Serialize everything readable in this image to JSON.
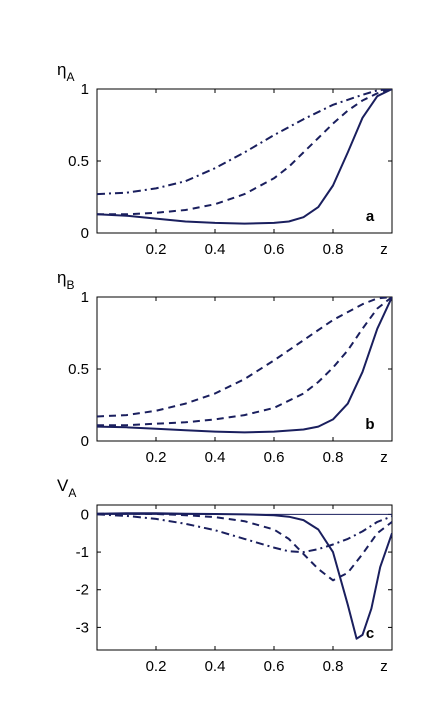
{
  "colors": {
    "line": "#1a1f5e",
    "axis": "#000000",
    "zero_line": "#1a1f5e"
  },
  "chart_data": [
    {
      "type": "line",
      "panel_label": "a",
      "ylabel": {
        "main": "η",
        "sub": "A"
      },
      "xlabel": "z",
      "xlim": [
        0,
        1
      ],
      "ylim": [
        0,
        1
      ],
      "xticks": [
        0.2,
        0.4,
        0.6,
        0.8
      ],
      "xtick_labels": [
        "0.2",
        "0.4",
        "0.6",
        "0.8"
      ],
      "yticks": [
        0,
        0.5,
        1
      ],
      "ytick_labels": [
        "0",
        "0.5",
        "1"
      ],
      "zero_line": false,
      "series": [
        {
          "style": "solid",
          "x": [
            0,
            0.1,
            0.2,
            0.3,
            0.4,
            0.5,
            0.6,
            0.65,
            0.7,
            0.75,
            0.8,
            0.85,
            0.9,
            0.95,
            1.0
          ],
          "y": [
            0.13,
            0.12,
            0.1,
            0.08,
            0.07,
            0.065,
            0.07,
            0.08,
            0.11,
            0.18,
            0.33,
            0.56,
            0.8,
            0.95,
            1.0
          ]
        },
        {
          "style": "dashed",
          "x": [
            0,
            0.1,
            0.2,
            0.3,
            0.4,
            0.5,
            0.6,
            0.65,
            0.7,
            0.75,
            0.8,
            0.85,
            0.9,
            0.95,
            1.0
          ],
          "y": [
            0.13,
            0.13,
            0.14,
            0.16,
            0.2,
            0.27,
            0.38,
            0.46,
            0.56,
            0.66,
            0.76,
            0.85,
            0.92,
            0.97,
            1.0
          ]
        },
        {
          "style": "dashdot",
          "x": [
            0,
            0.1,
            0.2,
            0.3,
            0.4,
            0.5,
            0.6,
            0.7,
            0.8,
            0.9,
            0.95,
            1.0
          ],
          "y": [
            0.27,
            0.28,
            0.31,
            0.36,
            0.45,
            0.56,
            0.68,
            0.79,
            0.89,
            0.96,
            0.99,
            1.0
          ]
        }
      ]
    },
    {
      "type": "line",
      "panel_label": "b",
      "ylabel": {
        "main": "η",
        "sub": "B"
      },
      "xlabel": "z",
      "xlim": [
        0,
        1
      ],
      "ylim": [
        0,
        1
      ],
      "xticks": [
        0.2,
        0.4,
        0.6,
        0.8
      ],
      "xtick_labels": [
        "0.2",
        "0.4",
        "0.6",
        "0.8"
      ],
      "yticks": [
        0,
        0.5,
        1
      ],
      "ytick_labels": [
        "0",
        "0.5",
        "1"
      ],
      "zero_line": false,
      "series": [
        {
          "style": "solid",
          "x": [
            0,
            0.1,
            0.2,
            0.3,
            0.4,
            0.5,
            0.6,
            0.7,
            0.75,
            0.8,
            0.85,
            0.9,
            0.95,
            1.0
          ],
          "y": [
            0.1,
            0.095,
            0.085,
            0.075,
            0.065,
            0.06,
            0.065,
            0.08,
            0.1,
            0.15,
            0.26,
            0.48,
            0.78,
            1.0
          ]
        },
        {
          "style": "dashed",
          "x": [
            0,
            0.1,
            0.2,
            0.3,
            0.4,
            0.5,
            0.6,
            0.7,
            0.75,
            0.8,
            0.85,
            0.9,
            0.95,
            1.0
          ],
          "y": [
            0.11,
            0.11,
            0.12,
            0.13,
            0.15,
            0.18,
            0.23,
            0.33,
            0.41,
            0.51,
            0.63,
            0.78,
            0.92,
            1.0
          ]
        },
        {
          "style": "dashed",
          "x": [
            0,
            0.1,
            0.2,
            0.3,
            0.4,
            0.5,
            0.6,
            0.7,
            0.8,
            0.9,
            0.95,
            1.0
          ],
          "y": [
            0.17,
            0.18,
            0.21,
            0.26,
            0.33,
            0.43,
            0.56,
            0.7,
            0.84,
            0.95,
            0.99,
            1.0
          ]
        }
      ]
    },
    {
      "type": "line",
      "panel_label": "c",
      "ylabel": {
        "main": "V",
        "sub": "A"
      },
      "xlabel": "z",
      "xlim": [
        0,
        1
      ],
      "ylim": [
        -3.6,
        0.25
      ],
      "xticks": [
        0.2,
        0.4,
        0.6,
        0.8
      ],
      "xtick_labels": [
        "0.2",
        "0.4",
        "0.6",
        "0.8"
      ],
      "yticks": [
        0,
        -1,
        -2,
        -3
      ],
      "ytick_labels": [
        "0",
        "-1",
        "-2",
        "-3"
      ],
      "zero_line": true,
      "series": [
        {
          "style": "solid",
          "x": [
            0,
            0.1,
            0.2,
            0.3,
            0.4,
            0.5,
            0.6,
            0.65,
            0.7,
            0.75,
            0.8,
            0.85,
            0.88,
            0.9,
            0.93,
            0.96,
            1.0
          ],
          "y": [
            0.02,
            0.03,
            0.03,
            0.02,
            0.01,
            0.0,
            -0.02,
            -0.06,
            -0.15,
            -0.4,
            -1.0,
            -2.4,
            -3.3,
            -3.2,
            -2.5,
            -1.4,
            -0.5
          ]
        },
        {
          "style": "dashed",
          "x": [
            0,
            0.1,
            0.2,
            0.3,
            0.4,
            0.5,
            0.6,
            0.65,
            0.7,
            0.75,
            0.8,
            0.85,
            0.9,
            0.95,
            1.0
          ],
          "y": [
            0.02,
            0.02,
            0.01,
            -0.02,
            -0.07,
            -0.18,
            -0.4,
            -0.65,
            -1.05,
            -1.45,
            -1.75,
            -1.55,
            -1.05,
            -0.5,
            -0.2
          ]
        },
        {
          "style": "dashdot",
          "x": [
            0,
            0.1,
            0.2,
            0.3,
            0.4,
            0.5,
            0.6,
            0.65,
            0.7,
            0.75,
            0.8,
            0.85,
            0.9,
            0.95,
            1.0
          ],
          "y": [
            0.0,
            -0.04,
            -0.12,
            -0.25,
            -0.42,
            -0.65,
            -0.88,
            -0.98,
            -1.0,
            -0.92,
            -0.8,
            -0.65,
            -0.45,
            -0.2,
            -0.05
          ]
        }
      ]
    }
  ]
}
